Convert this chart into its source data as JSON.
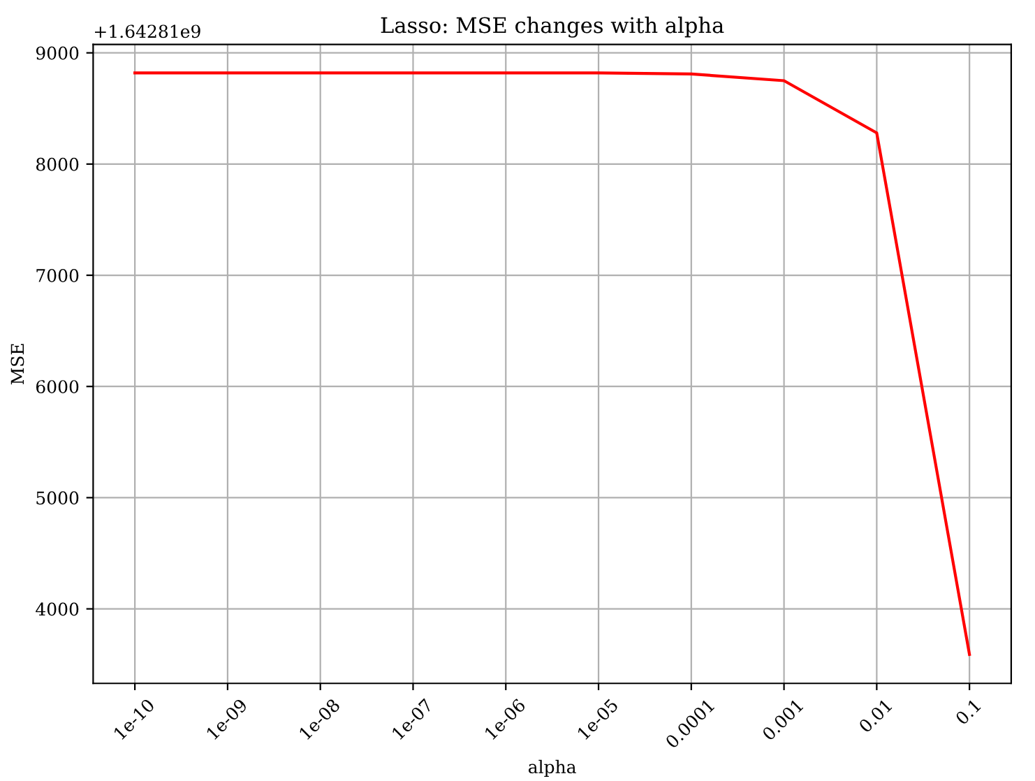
{
  "chart_data": {
    "type": "line",
    "title": "Lasso: MSE changes with alpha",
    "xlabel": "alpha",
    "ylabel": "MSE",
    "categories": [
      "1e-10",
      "1e-09",
      "1e-08",
      "1e-07",
      "1e-06",
      "1e-05",
      "0.0001",
      "0.001",
      "0.01",
      "0.1"
    ],
    "series": [
      {
        "color": "#ff0000",
        "values": [
          8820,
          8820,
          8820,
          8820,
          8820,
          8820,
          8810,
          8750,
          8280,
          3590
        ]
      }
    ],
    "ylim": [
      3330,
      9075
    ],
    "yticks": [
      4000,
      5000,
      6000,
      7000,
      8000,
      9000
    ],
    "annotations": [
      "+1.64281e9"
    ],
    "grid": true
  }
}
